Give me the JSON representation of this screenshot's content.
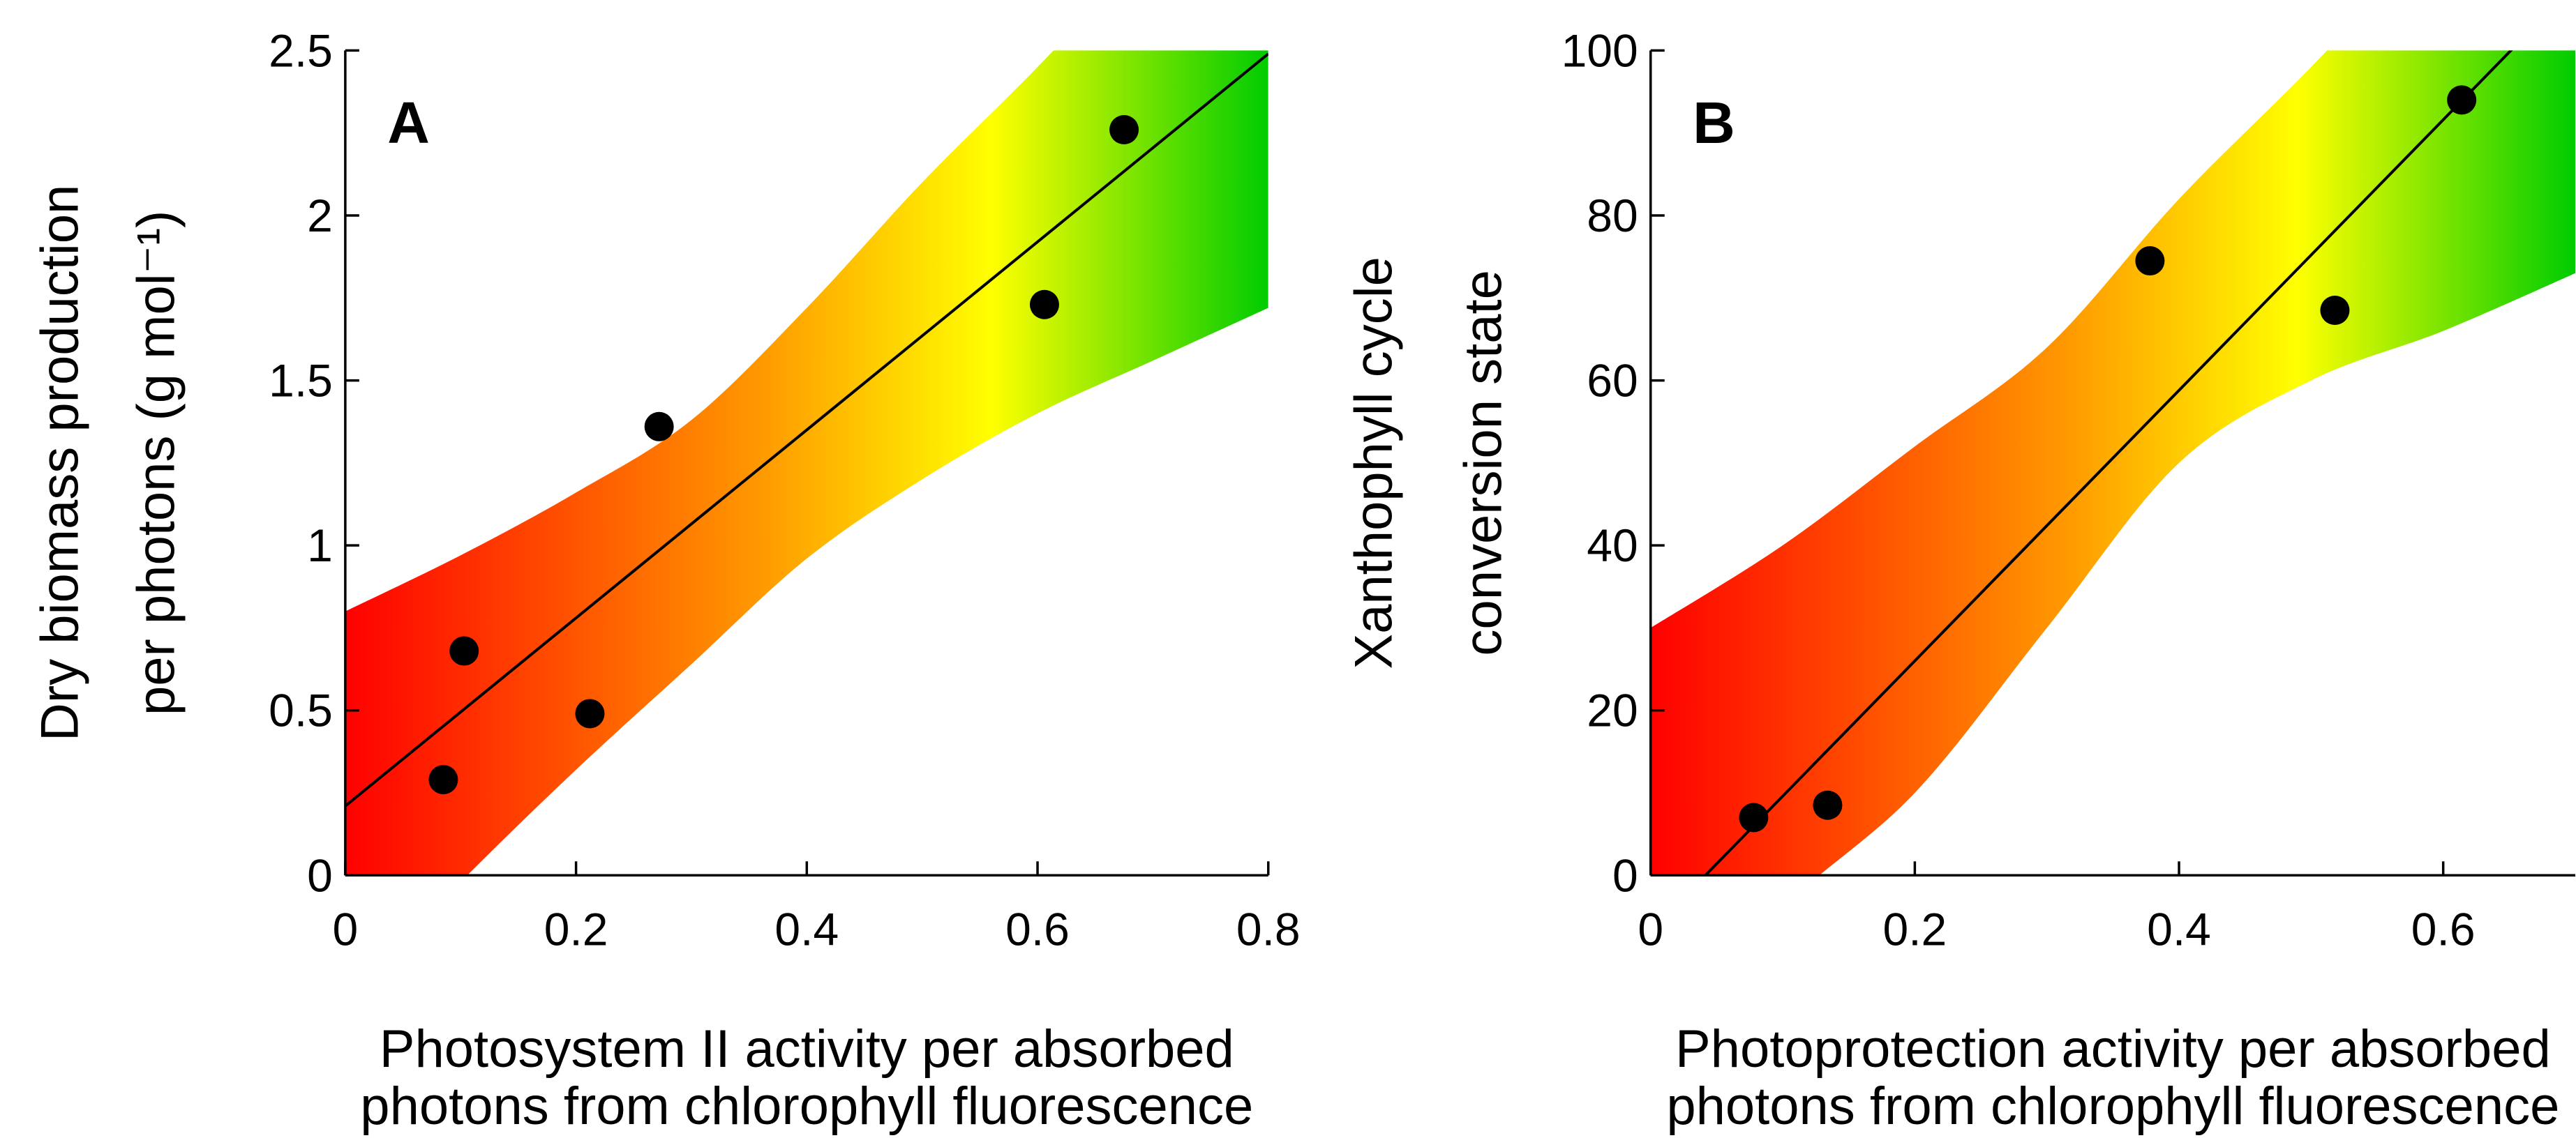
{
  "chart_data": [
    {
      "type": "scatter",
      "panel": "A",
      "xlabel": [
        "Photosystem II activity per absorbed",
        "photons from chlorophyll fluorescence"
      ],
      "ylabel": [
        "Dry biomass production",
        "per photons (g mol⁻¹)"
      ],
      "xlim": [
        0,
        0.8
      ],
      "ylim": [
        0,
        2.5
      ],
      "xticks": [
        0,
        0.2,
        0.4,
        0.6,
        0.8
      ],
      "xtick_labels": [
        "0",
        "0.2",
        "0.4",
        "0.6",
        "0.8"
      ],
      "yticks": [
        0,
        0.5,
        1,
        1.5,
        2,
        2.5
      ],
      "ytick_labels": [
        "0",
        "0.5",
        "1",
        "1.5",
        "2",
        "2.5"
      ],
      "points": [
        {
          "x": 0.085,
          "y": 0.29
        },
        {
          "x": 0.103,
          "y": 0.68
        },
        {
          "x": 0.212,
          "y": 0.49
        },
        {
          "x": 0.272,
          "y": 1.36
        },
        {
          "x": 0.606,
          "y": 1.73
        },
        {
          "x": 0.675,
          "y": 2.26
        }
      ],
      "fit_line": {
        "intercept": 0.21,
        "slope": 2.85
      },
      "confidence_band": {
        "x": [
          0,
          0.1,
          0.2,
          0.3,
          0.4,
          0.5,
          0.6,
          0.7,
          0.8
        ],
        "lower": [
          -0.38,
          -0.02,
          0.32,
          0.64,
          0.96,
          1.2,
          1.4,
          1.56,
          1.72
        ],
        "upper": [
          0.8,
          0.97,
          1.16,
          1.38,
          1.72,
          2.1,
          2.45,
          2.82,
          3.2
        ]
      },
      "band_colors": [
        "#ff0000",
        "#ff9900",
        "#ffff00",
        "#00cc00"
      ]
    },
    {
      "type": "scatter",
      "panel": "B",
      "xlabel": [
        "Photoprotection activity per absorbed",
        "photons from chlorophyll fluorescence"
      ],
      "ylabel": [
        "Xanthophyll cycle",
        "conversion state"
      ],
      "xlim": [
        0,
        0.7
      ],
      "ylim": [
        0,
        100
      ],
      "xticks": [
        0,
        0.2,
        0.4,
        0.6
      ],
      "xtick_labels": [
        "0",
        "0.2",
        "0.4",
        "0.6"
      ],
      "yticks": [
        0,
        20,
        40,
        60,
        80,
        100
      ],
      "ytick_labels": [
        "0",
        "20",
        "40",
        "60",
        "80",
        "100"
      ],
      "points": [
        {
          "x": 0.078,
          "y": 7
        },
        {
          "x": 0.134,
          "y": 8.5
        },
        {
          "x": 0.378,
          "y": 74.5
        },
        {
          "x": 0.518,
          "y": 68.5
        },
        {
          "x": 0.614,
          "y": 94
        }
      ],
      "fit_line": {
        "intercept": -6.8,
        "slope": 164
      },
      "confidence_band": {
        "x": [
          0,
          0.1,
          0.2,
          0.3,
          0.4,
          0.5,
          0.6,
          0.7
        ],
        "lower": [
          -22,
          -4,
          10,
          30,
          50,
          60,
          66,
          73
        ],
        "upper": [
          30,
          40,
          52,
          64,
          82,
          98,
          115,
          132
        ]
      },
      "band_colors": [
        "#ff0000",
        "#ff9900",
        "#ffff00",
        "#00cc00"
      ]
    }
  ]
}
